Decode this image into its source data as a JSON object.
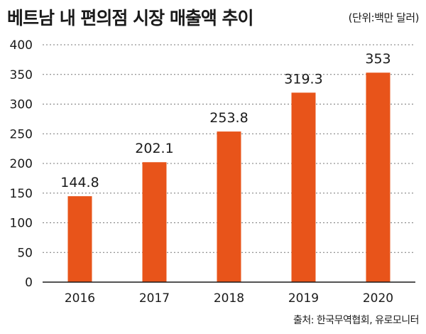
{
  "header": {
    "title": "베트남 내 편의점 시장 매출액 추이",
    "unit": "(단위:백만 달러)"
  },
  "footer": {
    "source": "출처: 한국무역협회, 유로모니터"
  },
  "colors": {
    "bar": "#e8541a",
    "axis": "#1a1a1a",
    "grid": "#777777"
  },
  "chart_data": {
    "type": "bar",
    "title": "베트남 내 편의점 시장 매출액 추이",
    "unit": "(단위:백만 달러)",
    "categories": [
      "2016",
      "2017",
      "2018",
      "2019",
      "2020"
    ],
    "values": [
      144.8,
      202.1,
      253.8,
      319.3,
      353
    ],
    "value_labels": [
      "144.8",
      "202.1",
      "253.8",
      "319.3",
      "353"
    ],
    "yticks": [
      0,
      50,
      100,
      150,
      200,
      250,
      300,
      350,
      400
    ],
    "ylim": [
      0,
      400
    ],
    "xlabel": "",
    "ylabel": "",
    "grid": "horizontal dashed"
  }
}
